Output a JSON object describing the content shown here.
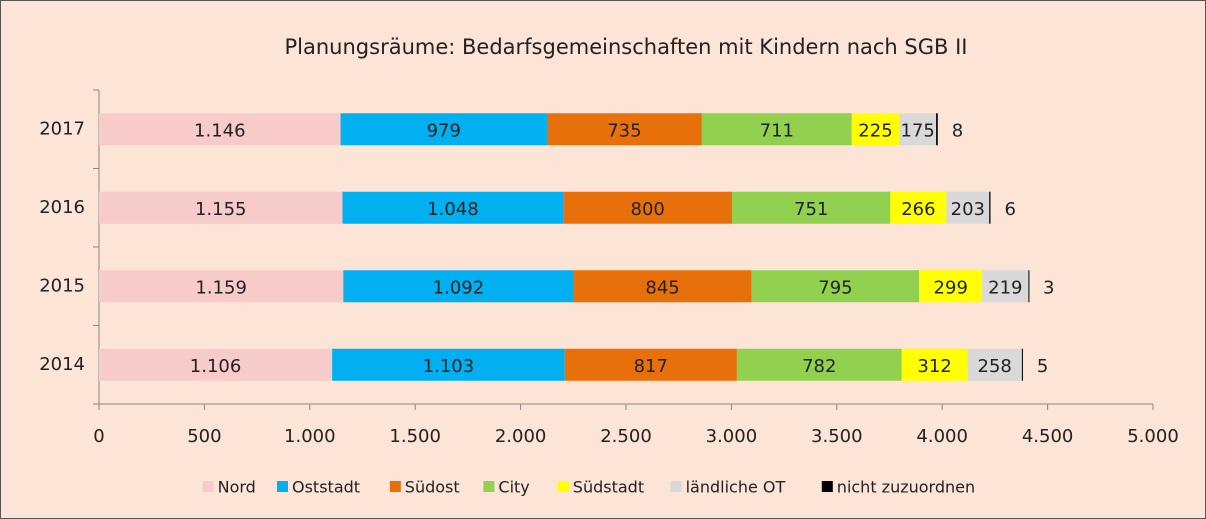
{
  "chart_data": {
    "type": "stacked-bar",
    "orientation": "horizontal",
    "title": "Planungsräume: Bedarfsgemeinschaften mit Kindern nach SGB II",
    "categories": [
      "2017",
      "2016",
      "2015",
      "2014"
    ],
    "series": [
      {
        "name": "Nord",
        "color": "#f8cbcb",
        "values": [
          1146,
          1155,
          1159,
          1106
        ],
        "value_labels": [
          "1.146",
          "1.155",
          "1.159",
          "1.106"
        ]
      },
      {
        "name": "Oststadt",
        "color": "#00b0f0",
        "values": [
          979,
          1048,
          1092,
          1103
        ],
        "value_labels": [
          "979",
          "1.048",
          "1.092",
          "1.103"
        ]
      },
      {
        "name": "Südost",
        "color": "#e8700a",
        "values": [
          735,
          800,
          845,
          817
        ],
        "value_labels": [
          "735",
          "800",
          "845",
          "817"
        ]
      },
      {
        "name": "City",
        "color": "#92d050",
        "values": [
          711,
          751,
          795,
          782
        ],
        "value_labels": [
          "711",
          "751",
          "795",
          "782"
        ]
      },
      {
        "name": "Südstadt",
        "color": "#ffff00",
        "values": [
          225,
          266,
          299,
          312
        ],
        "value_labels": [
          "225",
          "266",
          "299",
          "312"
        ]
      },
      {
        "name": "ländliche OT",
        "color": "#d9d9d9",
        "values": [
          175,
          203,
          219,
          258
        ],
        "value_labels": [
          "175",
          "203",
          "219",
          "258"
        ]
      },
      {
        "name": "nicht zuzuordnen",
        "color": "#000000",
        "values": [
          8,
          6,
          3,
          5
        ],
        "value_labels": [
          "8",
          "6",
          "3",
          "5"
        ]
      }
    ],
    "xlim": [
      0,
      5000
    ],
    "xticks": [
      0,
      500,
      {
        "value": 1000,
        "label": "1.000"
      },
      {
        "value": 1500,
        "label": "1.500"
      },
      {
        "value": 2000,
        "label": "2.000"
      },
      {
        "value": 2500,
        "label": "2.500"
      },
      {
        "value": 3000,
        "label": "3.000"
      },
      {
        "value": 3500,
        "label": "3.500"
      },
      {
        "value": 4000,
        "label": "4.000"
      },
      {
        "value": 4500,
        "label": "4.500"
      },
      {
        "value": 5000,
        "label": "5.000"
      }
    ],
    "legend": "bottom"
  }
}
